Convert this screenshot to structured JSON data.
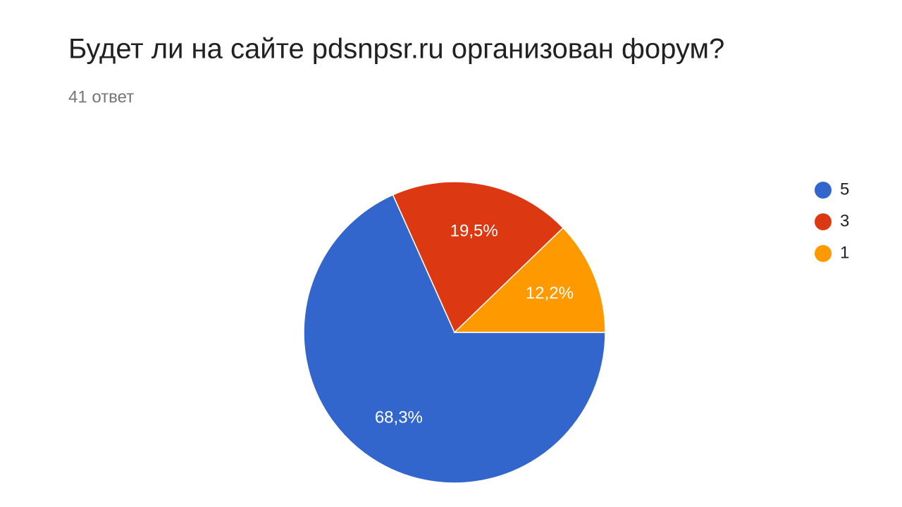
{
  "chart_data": {
    "type": "pie",
    "title": "Будет ли на сайте pdsnpsr.ru организован форум?",
    "subtitle": "41 ответ",
    "categories": [
      "5",
      "3",
      "1"
    ],
    "values": [
      68.3,
      19.5,
      12.2
    ],
    "value_labels": [
      "68,3%",
      "19,5%",
      "12,2%"
    ],
    "colors": [
      "#3366cc",
      "#dc3912",
      "#ff9900"
    ],
    "legend": "right"
  }
}
